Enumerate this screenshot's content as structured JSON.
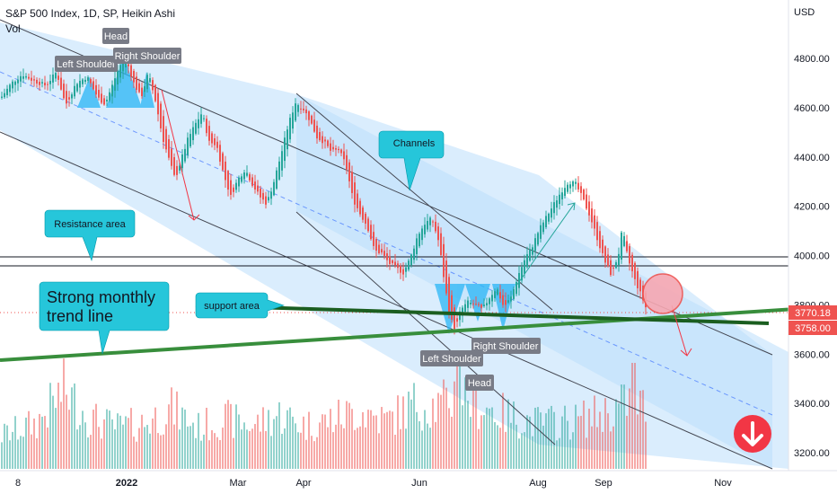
{
  "header": {
    "title": "S&P 500 Index, 1D, SP, Heikin Ashi",
    "volume_label": "Vol"
  },
  "chart_data": {
    "type": "candlestick",
    "currency": "USD",
    "y_ticks": [
      4800,
      4600,
      4400,
      4200,
      4000,
      3800,
      3600,
      3400,
      3200
    ],
    "y_tick_labels": [
      "4800.00",
      "4600.00",
      "4400.00",
      "4200.00",
      "4000.00",
      "3800.00",
      "3600.00",
      "3400.00",
      "3200.00"
    ],
    "ylim": [
      3150,
      4970
    ],
    "x_tick_labels": [
      "8",
      "2022",
      "Mar",
      "Apr",
      "Jun",
      "Aug",
      "Sep",
      "Nov"
    ],
    "last_price": "3770.18",
    "second_price": "3758.00",
    "price_path": [
      [
        0,
        4640
      ],
      [
        12,
        4700
      ],
      [
        24,
        4735
      ],
      [
        36,
        4710
      ],
      [
        50,
        4690
      ],
      [
        62,
        4745
      ],
      [
        72,
        4610
      ],
      [
        84,
        4700
      ],
      [
        96,
        4725
      ],
      [
        108,
        4640
      ],
      [
        116,
        4615
      ],
      [
        124,
        4690
      ],
      [
        132,
        4770
      ],
      [
        140,
        4790
      ],
      [
        148,
        4700
      ],
      [
        156,
        4640
      ],
      [
        164,
        4740
      ],
      [
        172,
        4630
      ],
      [
        180,
        4480
      ],
      [
        188,
        4380
      ],
      [
        194,
        4310
      ],
      [
        200,
        4380
      ],
      [
        208,
        4470
      ],
      [
        216,
        4530
      ],
      [
        224,
        4580
      ],
      [
        232,
        4460
      ],
      [
        240,
        4450
      ],
      [
        248,
        4330
      ],
      [
        256,
        4240
      ],
      [
        264,
        4310
      ],
      [
        272,
        4350
      ],
      [
        280,
        4290
      ],
      [
        288,
        4240
      ],
      [
        296,
        4210
      ],
      [
        304,
        4300
      ],
      [
        312,
        4410
      ],
      [
        320,
        4530
      ],
      [
        328,
        4620
      ],
      [
        336,
        4600
      ],
      [
        344,
        4550
      ],
      [
        352,
        4480
      ],
      [
        360,
        4460
      ],
      [
        368,
        4420
      ],
      [
        376,
        4430
      ],
      [
        384,
        4370
      ],
      [
        392,
        4230
      ],
      [
        400,
        4170
      ],
      [
        408,
        4120
      ],
      [
        416,
        4020
      ],
      [
        424,
        4010
      ],
      [
        432,
        3970
      ],
      [
        440,
        3950
      ],
      [
        448,
        3930
      ],
      [
        456,
        3990
      ],
      [
        464,
        4080
      ],
      [
        472,
        4130
      ],
      [
        480,
        4150
      ],
      [
        488,
        4050
      ],
      [
        494,
        3890
      ],
      [
        500,
        3750
      ],
      [
        506,
        3700
      ],
      [
        512,
        3780
      ],
      [
        520,
        3810
      ],
      [
        528,
        3800
      ],
      [
        536,
        3780
      ],
      [
        544,
        3830
      ],
      [
        552,
        3870
      ],
      [
        560,
        3790
      ],
      [
        568,
        3830
      ],
      [
        576,
        3920
      ],
      [
        584,
        3990
      ],
      [
        592,
        4040
      ],
      [
        600,
        4110
      ],
      [
        608,
        4160
      ],
      [
        616,
        4210
      ],
      [
        624,
        4260
      ],
      [
        632,
        4300
      ],
      [
        640,
        4290
      ],
      [
        648,
        4230
      ],
      [
        656,
        4160
      ],
      [
        664,
        4070
      ],
      [
        672,
        3980
      ],
      [
        680,
        3920
      ],
      [
        688,
        4010
      ],
      [
        692,
        4110
      ],
      [
        698,
        3990
      ],
      [
        706,
        3900
      ],
      [
        714,
        3830
      ],
      [
        720,
        3770
      ]
    ],
    "volume_path": [
      [
        0,
        40
      ],
      [
        40,
        55
      ],
      [
        70,
        95
      ],
      [
        100,
        60
      ],
      [
        130,
        50
      ],
      [
        160,
        55
      ],
      [
        190,
        72
      ],
      [
        220,
        50
      ],
      [
        250,
        60
      ],
      [
        280,
        52
      ],
      [
        310,
        65
      ],
      [
        340,
        52
      ],
      [
        370,
        60
      ],
      [
        400,
        70
      ],
      [
        430,
        58
      ],
      [
        460,
        78
      ],
      [
        490,
        75
      ],
      [
        510,
        95
      ],
      [
        530,
        80
      ],
      [
        560,
        65
      ],
      [
        600,
        55
      ],
      [
        640,
        58
      ],
      [
        680,
        70
      ],
      [
        704,
        85
      ],
      [
        718,
        72
      ]
    ]
  },
  "annotations": {
    "channels": "Channels",
    "resistance_area": "Resistance area",
    "support_area": "support area",
    "monthly_trend": [
      "Strong monthly",
      "trend line"
    ],
    "pattern1": {
      "head": "Head",
      "left_shoulder": "Left Shoulder",
      "right_shoulder": "Right Shoulder"
    },
    "pattern2": {
      "head": "Head",
      "left_shoulder": "Left Shoulder",
      "right_shoulder": "Right Shoulder"
    }
  },
  "colors": {
    "up": "#26a69a",
    "down": "#ef5350",
    "channel_fill": "#bbdefb",
    "channel_line": "#434651",
    "trend_line": "#388e3c",
    "callout_fill": "#26c6da",
    "pattern_fill": "#29b6f6",
    "label_grey": "#787b86",
    "arrow_red": "#f23645"
  }
}
